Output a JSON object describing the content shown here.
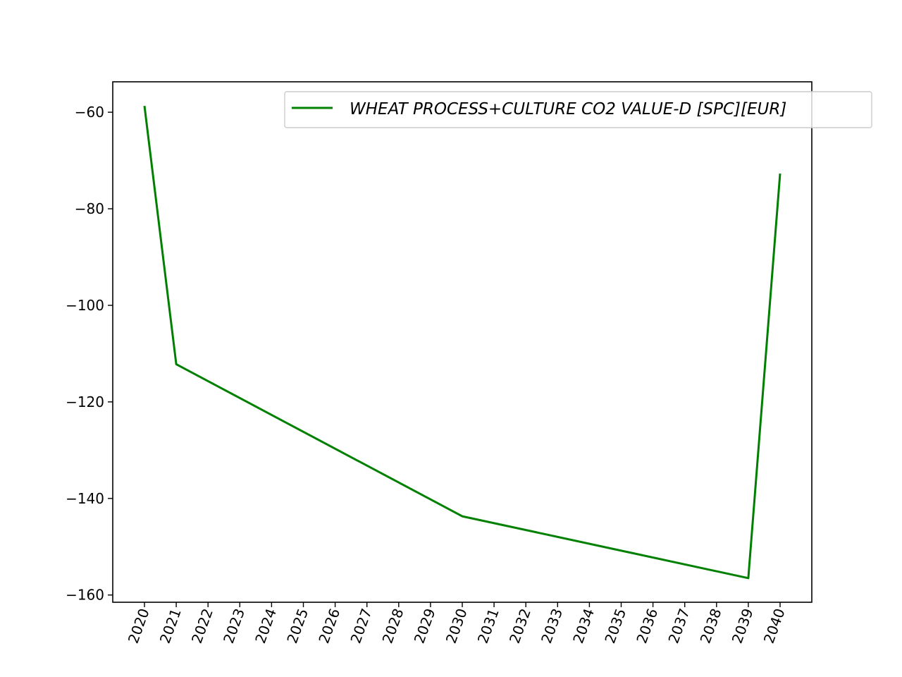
{
  "chart_data": {
    "type": "line",
    "title": "",
    "xlabel": "",
    "ylabel": "",
    "x": [
      "2020",
      "2021",
      "2022",
      "2023",
      "2024",
      "2025",
      "2026",
      "2027",
      "2028",
      "2029",
      "2030",
      "2031",
      "2032",
      "2033",
      "2034",
      "2035",
      "2036",
      "2037",
      "2038",
      "2039",
      "2040"
    ],
    "y_ticks": [
      -60,
      -80,
      -100,
      -120,
      -140,
      -160
    ],
    "ylim": [
      -161.5,
      -53.7
    ],
    "grid": false,
    "legend_position": "top-right",
    "series": [
      {
        "name": "WHEAT PROCESS+CULTURE CO2 VALUE-D [SPC][EUR]",
        "color": "#008000",
        "points": [
          {
            "x": "2020",
            "y": -58.7
          },
          {
            "x": "2021",
            "y": -112.2
          },
          {
            "x": "2030",
            "y": -143.7
          },
          {
            "x": "2039",
            "y": -156.5
          },
          {
            "x": "2040",
            "y": -72.7
          }
        ]
      }
    ]
  }
}
